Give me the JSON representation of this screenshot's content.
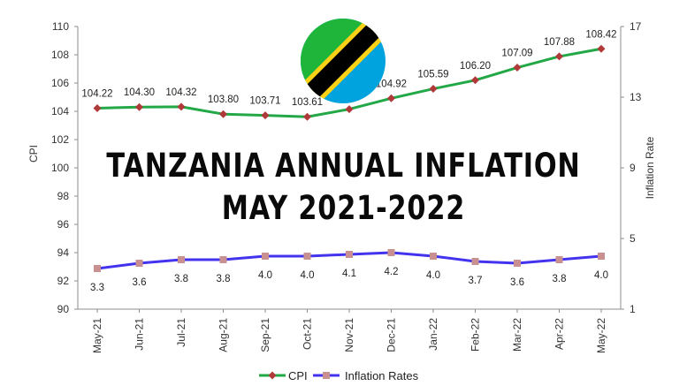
{
  "headline": {
    "line1": "TANZANIA ANNUAL INFLATION",
    "line2": "MAY 2021-2022"
  },
  "flag": {
    "icon": "tanzania-flag-icon",
    "colors": {
      "green": "#1eb53a",
      "blue": "#00a3dd",
      "yellow": "#fcd116",
      "black": "#000000"
    }
  },
  "chart_data": {
    "type": "line",
    "categories": [
      "May-21",
      "Jun-21",
      "Jul-21",
      "Aug-21",
      "Sep-21",
      "Oct-21",
      "Nov-21",
      "Dec-21",
      "Jan-22",
      "Feb-22",
      "Mar-22",
      "Apr-22",
      "May-22"
    ],
    "series": [
      {
        "name": "CPI",
        "axis": "left",
        "color": "#22a846",
        "marker_color": "#b03a3a",
        "marker": "diamond",
        "values": [
          104.22,
          104.3,
          104.32,
          103.8,
          103.71,
          103.61,
          104.15,
          104.92,
          105.59,
          106.2,
          107.09,
          107.88,
          108.42
        ],
        "labels": [
          "104.22",
          "104.30",
          "104.32",
          "103.80",
          "103.71",
          "103.61",
          "",
          "104.92",
          "105.59",
          "106.20",
          "107.09",
          "107.88",
          "108.42"
        ]
      },
      {
        "name": "Inflation Rates",
        "axis": "right",
        "color": "#4433ee",
        "marker_color": "#c89090",
        "marker": "square",
        "values": [
          3.3,
          3.6,
          3.8,
          3.8,
          4.0,
          4.0,
          4.1,
          4.2,
          4.0,
          3.7,
          3.6,
          3.8,
          4.0
        ],
        "labels": [
          "3.3",
          "3.6",
          "3.8",
          "3.8",
          "4.0",
          "4.0",
          "4.1",
          "4.2",
          "4.0",
          "3.7",
          "3.6",
          "3.8",
          "4.0"
        ]
      }
    ],
    "ylabel": "CPI",
    "y2label": "Inflation Rate",
    "ylim": [
      90,
      110
    ],
    "y2lim": [
      1,
      17
    ],
    "yticks": [
      "90",
      "92",
      "94",
      "96",
      "98",
      "100",
      "102",
      "104",
      "106",
      "108",
      "110"
    ],
    "y2ticks": [
      "1",
      "5",
      "9",
      "13",
      "17"
    ],
    "grid": false,
    "legend_position": "bottom"
  }
}
